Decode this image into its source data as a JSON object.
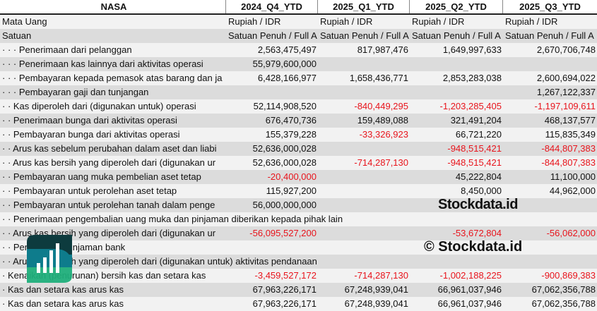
{
  "header": {
    "title": "NASA",
    "periods": [
      "2024_Q4_YTD",
      "2025_Q1_YTD",
      "2025_Q2_YTD",
      "2025_Q3_YTD"
    ]
  },
  "meta_rows": [
    {
      "label": "Mata Uang",
      "values": [
        "Rupiah / IDR",
        "Rupiah / IDR",
        "Rupiah / IDR",
        "Rupiah / IDR"
      ]
    },
    {
      "label": "Satuan",
      "values": [
        "Satuan Penuh / Full A",
        "Satuan Penuh / Full A",
        "Satuan Penuh / Full A",
        "Satuan Penuh / Full A"
      ]
    }
  ],
  "rows": [
    {
      "prefix": "· · · ",
      "label": "Penerimaan dari pelanggan",
      "values": [
        "2,563,475,497",
        "817,987,476",
        "1,649,997,633",
        "2,670,706,748"
      ]
    },
    {
      "prefix": "· · · ",
      "label": "Penerimaan kas lainnya dari aktivitas operasi",
      "values": [
        "55,979,600,000",
        "",
        "",
        ""
      ]
    },
    {
      "prefix": "· · · ",
      "label": "Pembayaran kepada pemasok atas barang dan ja",
      "values": [
        "6,428,166,977",
        "1,658,436,771",
        "2,853,283,038",
        "2,600,694,022"
      ]
    },
    {
      "prefix": "· · · ",
      "label": "Pembayaran gaji dan tunjangan",
      "values": [
        "",
        "",
        "",
        "1,267,122,337"
      ]
    },
    {
      "prefix": "· · ",
      "label": "Kas diperoleh dari (digunakan untuk) operasi",
      "values": [
        "52,114,908,520",
        "-840,449,295",
        "-1,203,285,405",
        "-1,197,109,611"
      ]
    },
    {
      "prefix": "· · ",
      "label": "Penerimaan bunga dari aktivitas operasi",
      "values": [
        "676,470,736",
        "159,489,088",
        "321,491,204",
        "468,137,577"
      ]
    },
    {
      "prefix": "· · ",
      "label": "Pembayaran bunga dari aktivitas operasi",
      "values": [
        "155,379,228",
        "-33,326,923",
        "66,721,220",
        "115,835,349"
      ]
    },
    {
      "prefix": "· · ",
      "label": "Arus kas sebelum perubahan dalam aset dan liabi",
      "values": [
        "52,636,000,028",
        "",
        "-948,515,421",
        "-844,807,383"
      ]
    },
    {
      "prefix": "· · ",
      "label": "Arus kas bersih yang diperoleh dari (digunakan ur",
      "values": [
        "52,636,000,028",
        "-714,287,130",
        "-948,515,421",
        "-844,807,383"
      ]
    },
    {
      "prefix": "· · ",
      "label": "Pembayaran uang muka pembelian aset tetap",
      "values": [
        "-20,400,000",
        "",
        "45,222,804",
        "11,100,000"
      ]
    },
    {
      "prefix": "· · ",
      "label": "Pembayaran untuk perolehan aset tetap",
      "values": [
        "115,927,200",
        "",
        "8,450,000",
        "44,962,000"
      ]
    },
    {
      "prefix": "· · ",
      "label": "Pembayaran untuk perolehan tanah dalam penge",
      "values": [
        "56,000,000,000",
        "",
        "",
        ""
      ]
    },
    {
      "prefix": "· · ",
      "label": "Penerimaan pengembalian uang muka dan pinjaman diberikan kepada pihak lain",
      "values": [
        "",
        "",
        "",
        ""
      ],
      "span": true
    },
    {
      "prefix": "· · ",
      "label": "Arus kas bersih yang diperoleh dari (digunakan ur",
      "values": [
        "-56,095,527,200",
        "",
        "-53,672,804",
        "-56,062,000"
      ]
    },
    {
      "prefix": "· · ",
      "label": "Penerimaan pinjaman bank",
      "values": [
        "",
        "",
        "",
        ""
      ]
    },
    {
      "prefix": "· · ",
      "label": "Arus kas bersih yang diperoleh dari (digunakan untuk) aktivitas pendanaan",
      "values": [
        "",
        "",
        "",
        ""
      ],
      "span": true
    },
    {
      "prefix": "· ",
      "label": "Kenaikan (penurunan) bersih kas dan setara kas",
      "values": [
        "-3,459,527,172",
        "-714,287,130",
        "-1,002,188,225",
        "-900,869,383"
      ]
    },
    {
      "prefix": "· ",
      "label": "Kas dan setara kas arus kas",
      "values": [
        "67,963,226,171",
        "67,248,939,041",
        "66,961,037,946",
        "67,062,356,788"
      ]
    },
    {
      "prefix": "· ",
      "label": "Kas dan setara kas arus kas",
      "values": [
        "67,963,226,171",
        "67,248,939,041",
        "66,961,037,946",
        "67,062,356,788"
      ]
    }
  ],
  "watermark": {
    "copyright": "© Stockdata.id",
    "brand": "Stockdata.id"
  },
  "colors": {
    "negative": "#e8141c",
    "row_light": "#f2f2f2",
    "row_dark": "#dcdcdc",
    "logo_dark": "#0d3b3e",
    "logo_teal": "#0e7c8c",
    "logo_green": "#1fae7a"
  }
}
